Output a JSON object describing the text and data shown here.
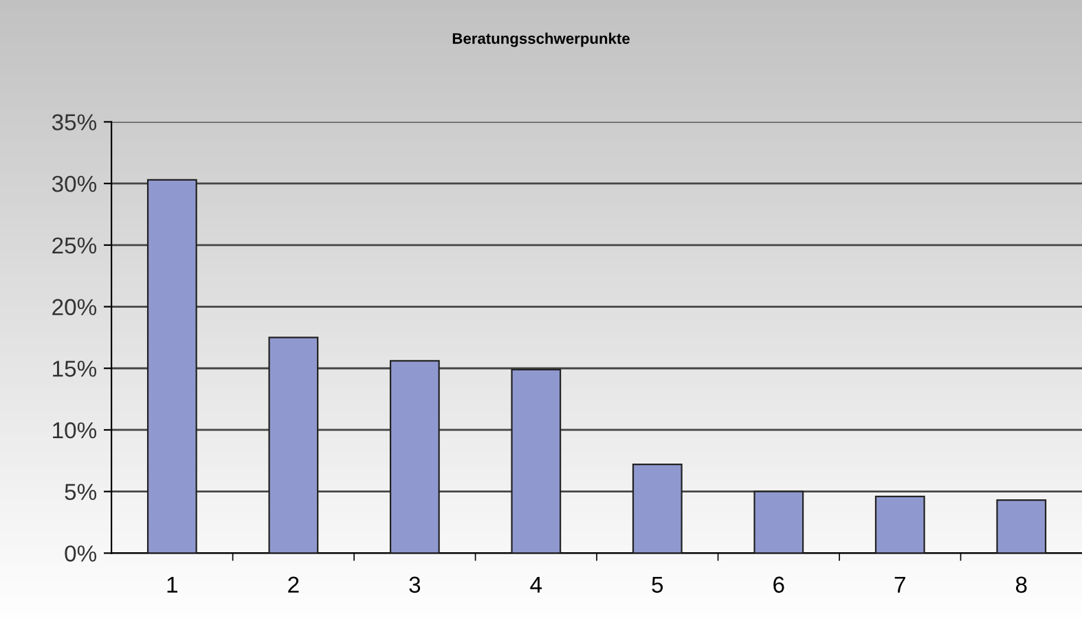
{
  "chart_data": {
    "type": "bar",
    "title": "Beratungsschwerpunkte",
    "categories": [
      "1",
      "2",
      "3",
      "4",
      "5",
      "6",
      "7",
      "8"
    ],
    "values": [
      30.3,
      17.5,
      15.6,
      14.9,
      7.2,
      5.0,
      4.6,
      4.3
    ],
    "color": "#9099cf",
    "ylim": [
      0,
      35
    ],
    "yticks": [
      {
        "value": 0,
        "label": "0%"
      },
      {
        "value": 5,
        "label": "5%"
      },
      {
        "value": 10,
        "label": "10%"
      },
      {
        "value": 15,
        "label": "15%"
      },
      {
        "value": 20,
        "label": "20%"
      },
      {
        "value": 25,
        "label": "25%"
      },
      {
        "value": 30,
        "label": "30%"
      },
      {
        "value": 35,
        "label": "35%"
      }
    ],
    "grid": "y"
  }
}
